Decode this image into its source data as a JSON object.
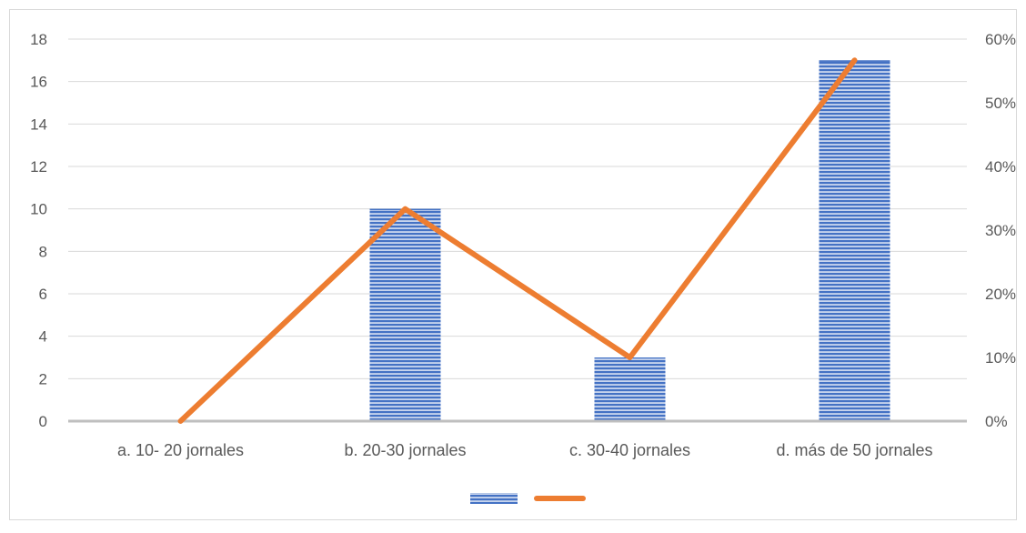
{
  "chart_data": {
    "type": "bar",
    "categories": [
      "a. 10- 20 jornales",
      "b. 20-30 jornales",
      "c. 30-40 jornales",
      "d. más de 50 jornales"
    ],
    "series": [
      {
        "type": "bar",
        "axis": "left",
        "values": [
          0,
          10,
          3,
          17
        ]
      },
      {
        "type": "line",
        "axis": "right",
        "values": [
          0,
          0.3333,
          0.1,
          0.5667
        ]
      }
    ],
    "y_left": {
      "min": 0,
      "max": 18,
      "ticks": [
        "0",
        "2",
        "4",
        "6",
        "8",
        "10",
        "12",
        "14",
        "16",
        "18"
      ]
    },
    "y_right": {
      "min": 0,
      "max": 0.6,
      "ticks": [
        "0%",
        "10%",
        "20%",
        "30%",
        "40%",
        "50%",
        "60%"
      ]
    },
    "grid": true,
    "legend": "bottom",
    "colors": {
      "bar": "#4472c4",
      "bar_stripe": "#ffffff",
      "line": "#ed7d31",
      "grid": "#d9d9d9",
      "axis": "#bfbfbf",
      "text": "#595959",
      "border": "#d9d9d9"
    }
  }
}
